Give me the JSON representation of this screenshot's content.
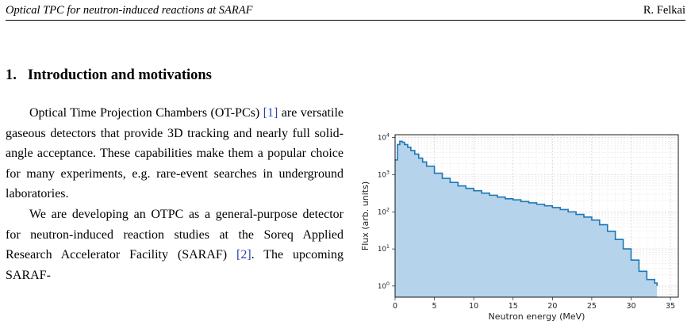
{
  "header": {
    "left": "Optical TPC for neutron-induced reactions at SARAF",
    "right": "R. Felkai"
  },
  "section": {
    "number": "1.",
    "title": "Introduction and motivations"
  },
  "paragraphs": [
    {
      "pre": "Optical Time Projection Chambers (OT-PCs) ",
      "cite": "[1]",
      "post": " are versatile gaseous detectors that provide 3D tracking and nearly full solid-angle acceptance. These capabilities make them a popular choice for many experiments, e.g. rare-event searches in underground laboratories."
    },
    {
      "pre": "We are developing an OTPC as a general-purpose detector for neutron-induced reaction studies at the Soreq Applied Research Accelerator Facility (SARAF) ",
      "cite": "[2]",
      "post": ". The upcoming SARAF-"
    }
  ],
  "chart_data": {
    "type": "area",
    "xlabel": "Neutron energy (MeV)",
    "ylabel": "Flux (arb. units)",
    "xlim": [
      0,
      36
    ],
    "ylim": [
      0.5,
      12000
    ],
    "yscale": "log",
    "grid": true,
    "xticks": [
      "0",
      "5",
      "10",
      "15",
      "20",
      "25",
      "30",
      "35"
    ],
    "yticks": [
      "10^0",
      "10^1",
      "10^2",
      "10^3",
      "10^4"
    ],
    "line_color": "#1f77b4",
    "fill_color": "#b5d3ea",
    "x": [
      0,
      0.3,
      0.6,
      0.9,
      1.2,
      1.6,
      2,
      2.5,
      3,
      3.5,
      4,
      5,
      6,
      7,
      8,
      9,
      10,
      11,
      12,
      13,
      14,
      15,
      16,
      17,
      18,
      19,
      20,
      21,
      22,
      23,
      24,
      25,
      26,
      27,
      28,
      29,
      30,
      31,
      32,
      33,
      33.3
    ],
    "y": [
      2500,
      6500,
      8000,
      7500,
      6500,
      5500,
      4500,
      3600,
      2800,
      2200,
      1700,
      1100,
      800,
      620,
      500,
      430,
      370,
      320,
      280,
      250,
      225,
      210,
      190,
      175,
      160,
      145,
      130,
      115,
      100,
      85,
      72,
      60,
      45,
      30,
      18,
      10,
      5,
      2.5,
      1.5,
      1.2,
      1
    ]
  }
}
